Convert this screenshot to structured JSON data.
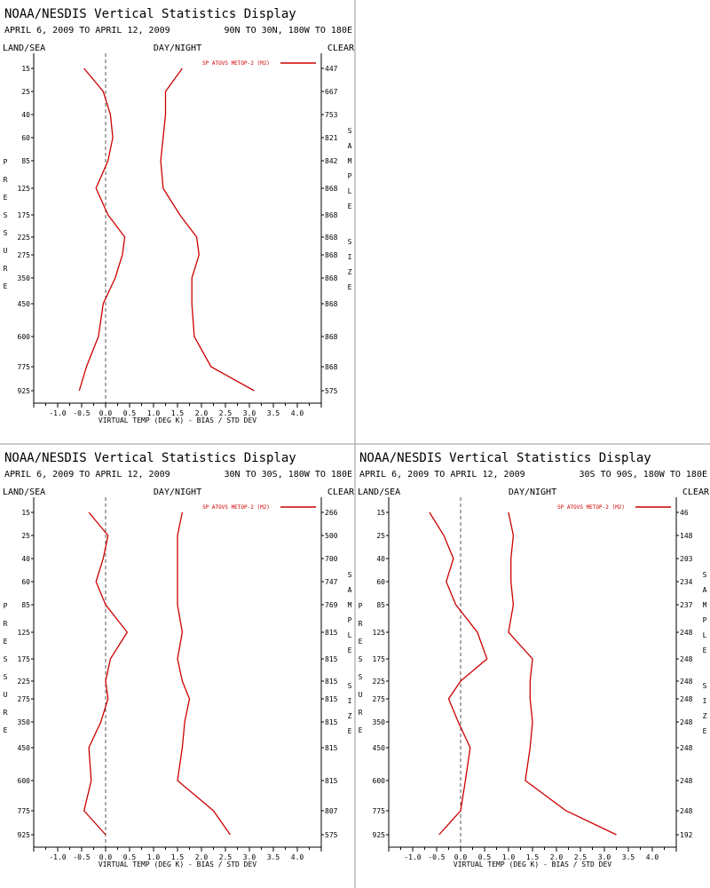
{
  "panel_title": "NOAA/NESDIS Vertical Statistics Display",
  "date_range": "APRIL 6, 2009 TO APRIL 12, 2009",
  "labels": {
    "left": "LAND/SEA",
    "center": "DAY/NIGHT",
    "right": "CLEAR",
    "xlabel": "VIRTUAL TEMP (DEG K) - BIAS / STD DEV",
    "ylabel": "PRESSURE",
    "y2label": [
      "SAMPLE",
      "SIZE"
    ]
  },
  "colors": {
    "line": "#cc0000",
    "zero_line": "#555555",
    "panel_border": "#999999"
  },
  "chart_data": [
    {
      "type": "line",
      "region": "90N TO 30N, 180W TO 180E",
      "legend": "SP ATOVS METOP-2 (M2)",
      "pressure_levels": [
        15,
        25,
        40,
        60,
        85,
        125,
        175,
        225,
        275,
        350,
        450,
        600,
        775,
        925
      ],
      "xlim": [
        -1.5,
        4.5
      ],
      "xticks": [
        "-1.0",
        "-0.5",
        "0.0",
        "0.5",
        "1.0",
        "1.5",
        "2.0",
        "2.5",
        "3.0",
        "3.5",
        "4.0"
      ],
      "series": [
        {
          "role": "bias",
          "values": [
            -0.45,
            -0.05,
            0.1,
            0.15,
            0.05,
            -0.2,
            0.05,
            0.4,
            0.35,
            0.2,
            -0.05,
            -0.15,
            -0.4,
            -0.55
          ]
        },
        {
          "role": "std_dev",
          "values": [
            1.6,
            1.25,
            1.25,
            1.2,
            1.15,
            1.2,
            1.55,
            1.9,
            1.95,
            1.8,
            1.8,
            1.85,
            2.2,
            3.1
          ]
        }
      ],
      "sample_size": [
        "447",
        "667",
        "753",
        "821",
        "842",
        "868",
        "868",
        "868",
        "868",
        "868",
        "868",
        "868",
        "868",
        "575"
      ]
    },
    {
      "type": "line",
      "region": "30N TO 30S, 180W TO 180E",
      "legend": "SP ATOVS METOP-2 (M2)",
      "pressure_levels": [
        15,
        25,
        40,
        60,
        85,
        125,
        175,
        225,
        275,
        350,
        450,
        600,
        775,
        925
      ],
      "xlim": [
        -1.5,
        4.5
      ],
      "xticks": [
        "-1.0",
        "-0.5",
        "0.0",
        "0.5",
        "1.0",
        "1.5",
        "2.0",
        "2.5",
        "3.0",
        "3.5",
        "4.0"
      ],
      "series": [
        {
          "role": "bias",
          "values": [
            -0.35,
            0.05,
            -0.05,
            -0.2,
            0.0,
            0.45,
            0.1,
            0.0,
            0.05,
            -0.1,
            -0.35,
            -0.3,
            -0.45,
            0.0
          ]
        },
        {
          "role": "std_dev",
          "values": [
            1.6,
            1.5,
            1.5,
            1.5,
            1.5,
            1.6,
            1.5,
            1.6,
            1.75,
            1.65,
            1.6,
            1.5,
            2.25,
            2.6
          ]
        }
      ],
      "sample_size": [
        "266",
        "500",
        "700",
        "747",
        "769",
        "815",
        "815",
        "815",
        "815",
        "815",
        "815",
        "815",
        "807",
        "575"
      ]
    },
    {
      "type": "line",
      "region": "30S TO 90S, 180W TO 180E",
      "legend": "SP ATOVS METOP-2 (M2)",
      "pressure_levels": [
        15,
        25,
        40,
        60,
        85,
        125,
        175,
        225,
        275,
        350,
        450,
        600,
        775,
        925
      ],
      "xlim": [
        -1.5,
        4.5
      ],
      "xticks": [
        "-1.0",
        "-0.5",
        "0.0",
        "0.5",
        "1.0",
        "1.5",
        "2.0",
        "2.5",
        "3.0",
        "3.5",
        "4.0"
      ],
      "series": [
        {
          "role": "bias",
          "values": [
            -0.65,
            -0.35,
            -0.15,
            -0.3,
            -0.1,
            0.35,
            0.55,
            0.0,
            -0.25,
            -0.05,
            0.2,
            0.1,
            0.0,
            -0.45
          ]
        },
        {
          "role": "std_dev",
          "values": [
            1.0,
            1.1,
            1.05,
            1.05,
            1.1,
            1.0,
            1.5,
            1.45,
            1.45,
            1.5,
            1.45,
            1.35,
            2.2,
            3.25
          ]
        }
      ],
      "sample_size": [
        "46",
        "148",
        "203",
        "234",
        "237",
        "248",
        "248",
        "248",
        "248",
        "248",
        "248",
        "248",
        "248",
        "192"
      ]
    }
  ]
}
